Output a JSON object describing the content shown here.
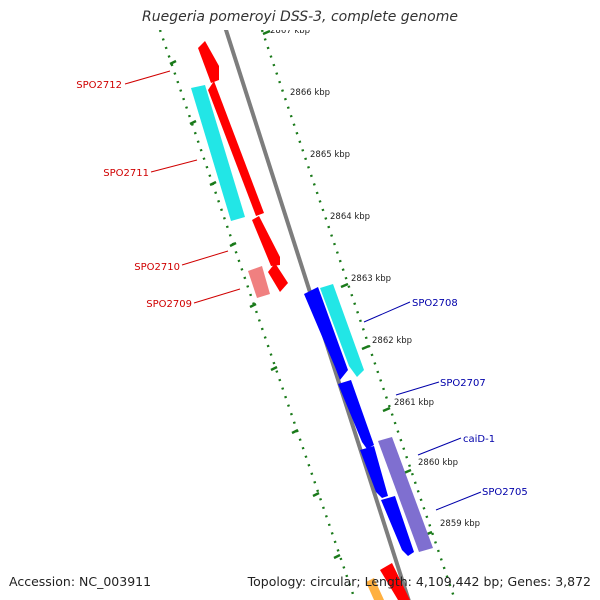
{
  "title": "Ruegeria pomeroyi DSS-3, complete genome",
  "footer": {
    "accession": "Accession: NC_003911",
    "summary": "Topology: circular; Length: 4,109,442 bp; Genes: 3,872"
  },
  "colors": {
    "forward_gene": "#ff0000",
    "forward_gene_pseudo": "#f08080",
    "reverse_gene": "#0000ff",
    "reverse_rna": "#22e6e6",
    "reverse_alt": "#7f6fd0",
    "forward_label": "#d00000",
    "reverse_label": "#0000aa",
    "backbone": "#808080",
    "ticks": "#1a7a1a"
  },
  "scale_labels": [
    "2867 kbp",
    "2866 kbp",
    "2865 kbp",
    "2864 kbp",
    "2863 kbp",
    "2862 kbp",
    "2861 kbp",
    "2860 kbp",
    "2859 kbp"
  ],
  "forward_genes": [
    "SPO2712",
    "SPO2711",
    "SPO2710",
    "SPO2709"
  ],
  "reverse_genes": [
    "SPO2708",
    "SPO2707",
    "caiD-1",
    "SPO2705"
  ]
}
